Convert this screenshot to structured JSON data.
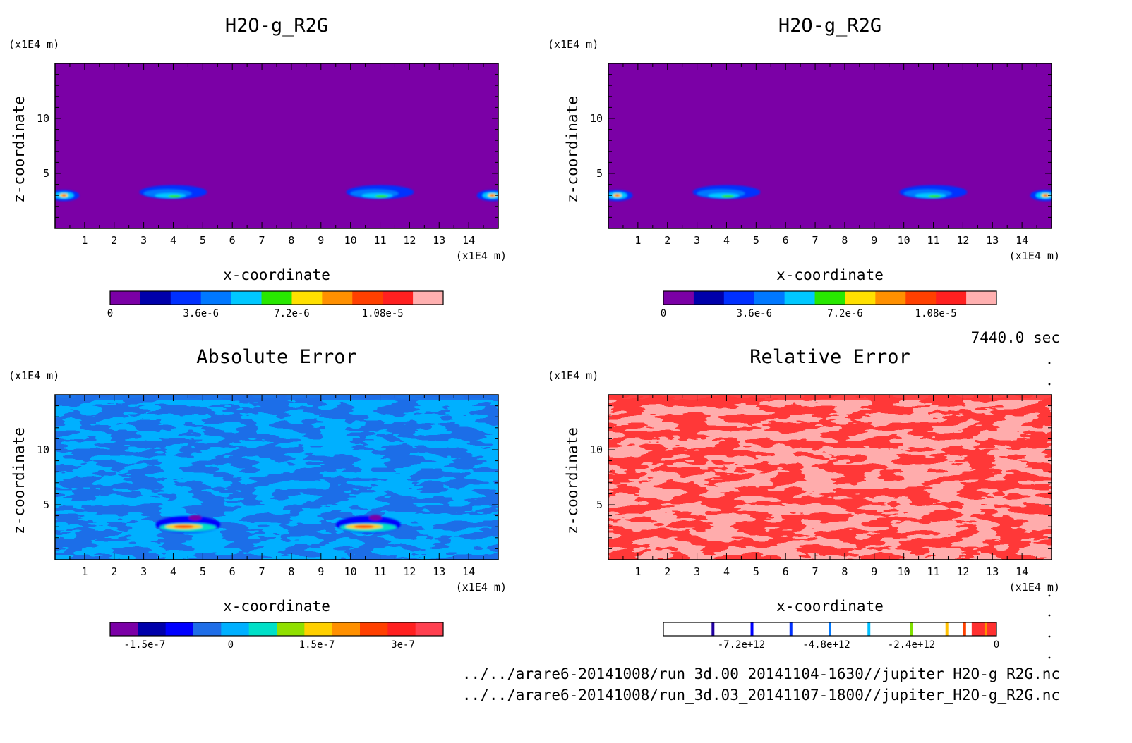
{
  "chart_data": [
    {
      "type": "heatmap",
      "panel": "top-left",
      "title": "H2O-g_R2G",
      "xlabel": "x-coordinate",
      "ylabel": "z-coordinate",
      "x_unit": "(x1E4 m)",
      "y_unit": "(x1E4 m)",
      "xlim": [
        0,
        15
      ],
      "ylim": [
        0,
        15
      ],
      "x_ticks": [
        1,
        2,
        3,
        4,
        5,
        6,
        7,
        8,
        9,
        10,
        11,
        12,
        13,
        14
      ],
      "y_ticks": [
        5,
        10
      ],
      "background": "#7b00a6",
      "features": [
        {
          "x": 4.0,
          "z": 3.3,
          "kind": "cloud"
        },
        {
          "x": 11.0,
          "z": 3.3,
          "kind": "cloud"
        },
        {
          "x": 0.3,
          "z": 3.0,
          "kind": "edge"
        },
        {
          "x": 14.8,
          "z": 3.0,
          "kind": "edge"
        }
      ],
      "colorbar": {
        "colors": [
          "#7b00a6",
          "#0000aa",
          "#0030ff",
          "#0078ff",
          "#00c8ff",
          "#28e800",
          "#ffe000",
          "#ff9000",
          "#ff4000",
          "#ff2020",
          "#ffb0b0"
        ],
        "min": 0,
        "max": 1.32e-05,
        "labels": [
          {
            "value": 0,
            "text": "0"
          },
          {
            "value": 3.6e-06,
            "text": "3.6e-6"
          },
          {
            "value": 7.2e-06,
            "text": "7.2e-6"
          },
          {
            "value": 1.08e-05,
            "text": "1.08e-5"
          }
        ]
      }
    },
    {
      "type": "heatmap",
      "panel": "top-right",
      "title": "H2O-g_R2G",
      "xlabel": "x-coordinate",
      "ylabel": "z-coordinate",
      "x_unit": "(x1E4 m)",
      "y_unit": "(x1E4 m)",
      "xlim": [
        0,
        15
      ],
      "ylim": [
        0,
        15
      ],
      "x_ticks": [
        1,
        2,
        3,
        4,
        5,
        6,
        7,
        8,
        9,
        10,
        11,
        12,
        13,
        14
      ],
      "y_ticks": [
        5,
        10
      ],
      "background": "#7b00a6",
      "features": [
        {
          "x": 4.0,
          "z": 3.3,
          "kind": "cloud"
        },
        {
          "x": 11.0,
          "z": 3.3,
          "kind": "cloud"
        },
        {
          "x": 0.3,
          "z": 3.0,
          "kind": "edge"
        },
        {
          "x": 14.8,
          "z": 3.0,
          "kind": "edge"
        }
      ],
      "colorbar": {
        "colors": [
          "#7b00a6",
          "#0000aa",
          "#0030ff",
          "#0078ff",
          "#00c8ff",
          "#28e800",
          "#ffe000",
          "#ff9000",
          "#ff4000",
          "#ff2020",
          "#ffb0b0"
        ],
        "min": 0,
        "max": 1.32e-05,
        "labels": [
          {
            "value": 0,
            "text": "0"
          },
          {
            "value": 3.6e-06,
            "text": "3.6e-6"
          },
          {
            "value": 7.2e-06,
            "text": "7.2e-6"
          },
          {
            "value": 1.08e-05,
            "text": "1.08e-5"
          }
        ]
      }
    },
    {
      "type": "heatmap",
      "panel": "bottom-left",
      "title": "Absolute Error",
      "xlabel": "x-coordinate",
      "ylabel": "z-coordinate",
      "x_unit": "(x1E4 m)",
      "y_unit": "(x1E4 m)",
      "xlim": [
        0,
        15
      ],
      "ylim": [
        0,
        15
      ],
      "x_ticks": [
        1,
        2,
        3,
        4,
        5,
        6,
        7,
        8,
        9,
        10,
        11,
        12,
        13,
        14
      ],
      "y_ticks": [
        5,
        10
      ],
      "background": "#00b0ff",
      "pattern_color": "#1f6ee8",
      "features": [
        {
          "x": 4.5,
          "z": 3.2,
          "kind": "error-hot"
        },
        {
          "x": 10.6,
          "z": 3.2,
          "kind": "error-hot"
        }
      ],
      "colorbar": {
        "colors": [
          "#7b00a6",
          "#0000aa",
          "#0000ff",
          "#1f6ee8",
          "#00b0ff",
          "#00e0c8",
          "#90e000",
          "#ffd000",
          "#ff9000",
          "#ff4000",
          "#ff2020",
          "#ff4050"
        ],
        "min": -2.1e-07,
        "max": 3.7e-07,
        "labels": [
          {
            "value": -1.5e-07,
            "text": "-1.5e-7"
          },
          {
            "value": 0,
            "text": "0"
          },
          {
            "value": 1.5e-07,
            "text": "1.5e-7"
          },
          {
            "value": 3e-07,
            "text": "3e-7"
          }
        ]
      }
    },
    {
      "type": "heatmap",
      "panel": "bottom-right",
      "title": "Relative Error",
      "xlabel": "x-coordinate",
      "ylabel": "z-coordinate",
      "x_unit": "(x1E4 m)",
      "y_unit": "(x1E4 m)",
      "xlim": [
        0,
        15
      ],
      "ylim": [
        0,
        15
      ],
      "x_ticks": [
        1,
        2,
        3,
        4,
        5,
        6,
        7,
        8,
        9,
        10,
        11,
        12,
        13,
        14
      ],
      "y_ticks": [
        5,
        10
      ],
      "background": "#ffacac",
      "pattern_color": "#ff3838",
      "features": [],
      "colorbar": {
        "min": -9400000000000.0,
        "max": 0,
        "fill_from": -700000000000.0,
        "fill_color": "#ff3030",
        "marks": [
          {
            "value": -8000000000000.0,
            "color": "#2000a0"
          },
          {
            "value": -6900000000000.0,
            "color": "#0000ff"
          },
          {
            "value": -5800000000000.0,
            "color": "#0030ff"
          },
          {
            "value": -4700000000000.0,
            "color": "#0078ff"
          },
          {
            "value": -3600000000000.0,
            "color": "#00c0ff"
          },
          {
            "value": -2400000000000.0,
            "color": "#80e000"
          },
          {
            "value": -1400000000000.0,
            "color": "#ffc000"
          },
          {
            "value": -300000000000.0,
            "color": "#ff9000"
          },
          {
            "value": -900000000000.0,
            "color": "#ff4000"
          }
        ],
        "labels": [
          {
            "value": -7200000000000.0,
            "text": "-7.2e+12"
          },
          {
            "value": -4800000000000.0,
            "text": "-4.8e+12"
          },
          {
            "value": -2400000000000.0,
            "text": "-2.4e+12"
          },
          {
            "value": 0,
            "text": "0"
          }
        ]
      }
    }
  ],
  "time_label": "7440.0 sec",
  "files": [
    "../../arare6-20141008/run_3d.00_20141104-1630//jupiter_H2O-g_R2G.nc",
    "../../arare6-20141008/run_3d.03_20141107-1800//jupiter_H2O-g_R2G.nc"
  ]
}
